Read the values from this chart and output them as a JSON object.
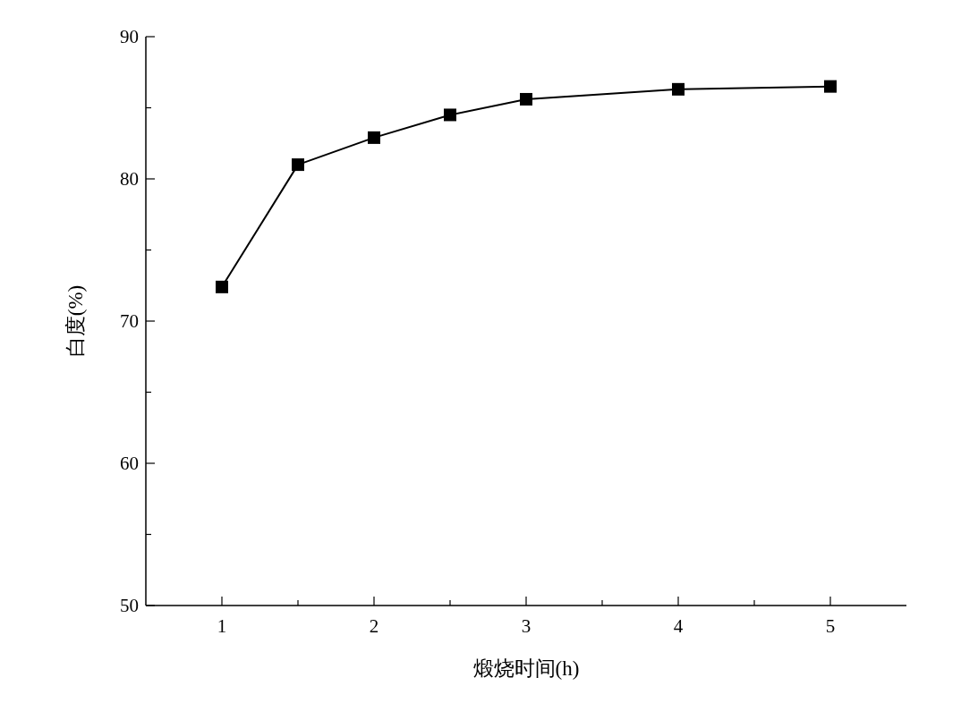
{
  "chart_data": {
    "type": "line",
    "xlabel": "煅烧时间(h)",
    "ylabel": "白度(%)",
    "x": [
      1,
      1.5,
      2,
      2.5,
      3,
      4,
      5
    ],
    "series": [
      {
        "color": "#000000",
        "values": [
          72.4,
          81.0,
          82.9,
          84.5,
          85.6,
          86.3,
          86.5
        ]
      }
    ],
    "xlim": [
      0.5,
      5.5
    ],
    "xticks": [
      1,
      {
        "value": 1.5,
        "label": null
      },
      2,
      {
        "value": 2.5,
        "label": null
      },
      3,
      {
        "value": 3.5,
        "label": null
      },
      4,
      {
        "value": 4.5,
        "label": null
      },
      5
    ],
    "ylim": [
      50,
      90
    ],
    "yticks": [
      50,
      {
        "value": 55,
        "label": null
      },
      60,
      {
        "value": 65,
        "label": null
      },
      70,
      {
        "value": 75,
        "label": null
      },
      80,
      {
        "value": 85,
        "label": null
      },
      90
    ],
    "marker": "square",
    "line_style": "solid"
  }
}
